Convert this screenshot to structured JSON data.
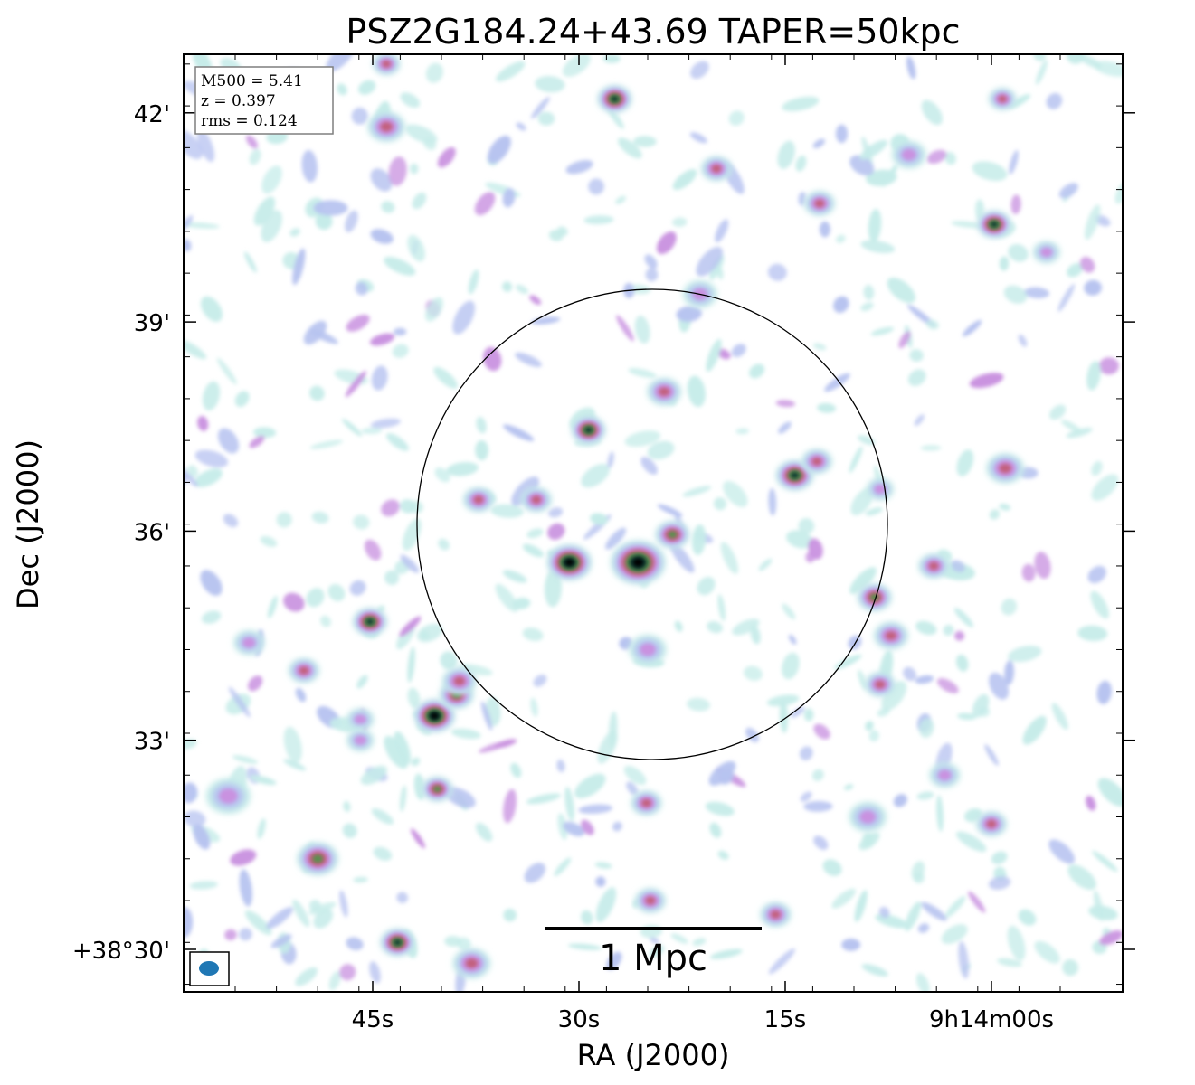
{
  "chart_data": {
    "type": "heatmap",
    "title": "PSZ2G184.24+43.69 TAPER=50kpc",
    "xlabel": "RA (J2000)",
    "ylabel": "Dec (J2000)",
    "x_ticks": [
      {
        "label": "45s",
        "ra_seconds": 45
      },
      {
        "label": "30s",
        "ra_seconds": 30
      },
      {
        "label": "15s",
        "ra_seconds": 15
      },
      {
        "label": "9h14m00s",
        "ra_seconds": 0
      }
    ],
    "y_ticks": [
      {
        "label": "42'",
        "dec_arcmin": 42
      },
      {
        "label": "39'",
        "dec_arcmin": 39
      },
      {
        "label": "36'",
        "dec_arcmin": 36
      },
      {
        "label": "33'",
        "dec_arcmin": 33
      },
      {
        "label": "+38°30'",
        "dec_arcmin": 30
      }
    ],
    "info_box": [
      "M500 = 5.41",
      "z = 0.397",
      "rms = 0.124"
    ],
    "scale_bar_label": "1 Mpc",
    "colormap": [
      "#c6ece9",
      "#b7c3f0",
      "#c992e0",
      "#c2607e",
      "#5a8f4e",
      "#0b3b32",
      "#000000"
    ],
    "circle_color": "#000000",
    "beam_color": "#1f77b4",
    "sources": [
      {
        "ra": 30.7,
        "dec": 35.55,
        "peak": 1.0,
        "size": 1.3
      },
      {
        "ra": 25.7,
        "dec": 35.55,
        "peak": 1.0,
        "size": 1.6
      },
      {
        "ra": 23.2,
        "dec": 35.95,
        "peak": 0.62,
        "size": 1.0
      },
      {
        "ra": 29.3,
        "dec": 37.45,
        "peak": 0.75,
        "size": 1.0
      },
      {
        "ra": 23.8,
        "dec": 38.0,
        "peak": 0.5,
        "size": 1.0
      },
      {
        "ra": 37.3,
        "dec": 36.45,
        "peak": 0.55,
        "size": 0.9
      },
      {
        "ra": 33.1,
        "dec": 36.45,
        "peak": 0.5,
        "size": 0.9
      },
      {
        "ra": 14.3,
        "dec": 36.8,
        "peak": 0.75,
        "size": 1.1
      },
      {
        "ra": 12.7,
        "dec": 37.0,
        "peak": 0.45,
        "size": 0.9
      },
      {
        "ra": 27.4,
        "dec": 42.2,
        "peak": 0.8,
        "size": 1.0
      },
      {
        "ra": 44.0,
        "dec": 42.7,
        "peak": 0.5,
        "size": 0.8
      },
      {
        "ra": 44.0,
        "dec": 41.8,
        "peak": 0.5,
        "size": 1.1
      },
      {
        "ra": 20.0,
        "dec": 41.2,
        "peak": 0.45,
        "size": 0.9
      },
      {
        "ra": 12.5,
        "dec": 40.7,
        "peak": 0.5,
        "size": 0.9
      },
      {
        "ra": -0.8,
        "dec": 42.2,
        "peak": 0.45,
        "size": 0.8
      },
      {
        "ra": -0.2,
        "dec": 40.4,
        "peak": 0.8,
        "size": 1.0
      },
      {
        "ra": -4.0,
        "dec": 40.0,
        "peak": 0.4,
        "size": 0.8
      },
      {
        "ra": -1.0,
        "dec": 36.9,
        "peak": 0.5,
        "size": 1.1
      },
      {
        "ra": 8.1,
        "dec": 36.6,
        "peak": 0.4,
        "size": 0.8
      },
      {
        "ra": 4.2,
        "dec": 35.5,
        "peak": 0.45,
        "size": 0.9
      },
      {
        "ra": 8.5,
        "dec": 35.05,
        "peak": 0.7,
        "size": 1.0
      },
      {
        "ra": 7.3,
        "dec": 34.5,
        "peak": 0.55,
        "size": 1.0
      },
      {
        "ra": 8.1,
        "dec": 33.8,
        "peak": 0.45,
        "size": 0.9
      },
      {
        "ra": 45.2,
        "dec": 34.7,
        "peak": 0.8,
        "size": 1.0
      },
      {
        "ra": 40.5,
        "dec": 33.35,
        "peak": 1.0,
        "size": 1.2
      },
      {
        "ra": 38.9,
        "dec": 33.65,
        "peak": 0.7,
        "size": 1.0
      },
      {
        "ra": 38.7,
        "dec": 33.85,
        "peak": 0.45,
        "size": 1.0
      },
      {
        "ra": 45.9,
        "dec": 33.3,
        "peak": 0.4,
        "size": 0.8
      },
      {
        "ra": 45.9,
        "dec": 33.0,
        "peak": 0.35,
        "size": 0.8
      },
      {
        "ra": 50.0,
        "dec": 34.0,
        "peak": 0.45,
        "size": 0.9
      },
      {
        "ra": 54.0,
        "dec": 34.4,
        "peak": 0.4,
        "size": 0.9
      },
      {
        "ra": 40.3,
        "dec": 32.3,
        "peak": 0.6,
        "size": 0.9
      },
      {
        "ra": 49.0,
        "dec": 31.3,
        "peak": 0.65,
        "size": 1.2
      },
      {
        "ra": 55.5,
        "dec": 32.2,
        "peak": 0.4,
        "size": 1.3
      },
      {
        "ra": 43.2,
        "dec": 30.1,
        "peak": 0.85,
        "size": 1.0
      },
      {
        "ra": 37.8,
        "dec": 29.8,
        "peak": 0.45,
        "size": 1.1
      },
      {
        "ra": 24.8,
        "dec": 30.7,
        "peak": 0.55,
        "size": 0.9
      },
      {
        "ra": 25.1,
        "dec": 32.1,
        "peak": 0.45,
        "size": 0.9
      },
      {
        "ra": 15.7,
        "dec": 30.5,
        "peak": 0.5,
        "size": 0.9
      },
      {
        "ra": 0.0,
        "dec": 31.8,
        "peak": 0.55,
        "size": 0.9
      },
      {
        "ra": 3.4,
        "dec": 32.5,
        "peak": 0.4,
        "size": 0.9
      },
      {
        "ra": 9.0,
        "dec": 31.9,
        "peak": 0.35,
        "size": 1.1
      },
      {
        "ra": 25.0,
        "dec": 34.3,
        "peak": 0.35,
        "size": 1.1
      },
      {
        "ra": 21.2,
        "dec": 39.4,
        "peak": 0.35,
        "size": 1.0
      },
      {
        "ra": 6.0,
        "dec": 41.4,
        "peak": 0.3,
        "size": 1.0
      }
    ]
  },
  "page": {
    "title": "PSZ2G184.24+43.69 TAPER=50kpc",
    "xlabel": "RA (J2000)",
    "ylabel": "Dec (J2000)",
    "scale_label": "1 Mpc"
  }
}
